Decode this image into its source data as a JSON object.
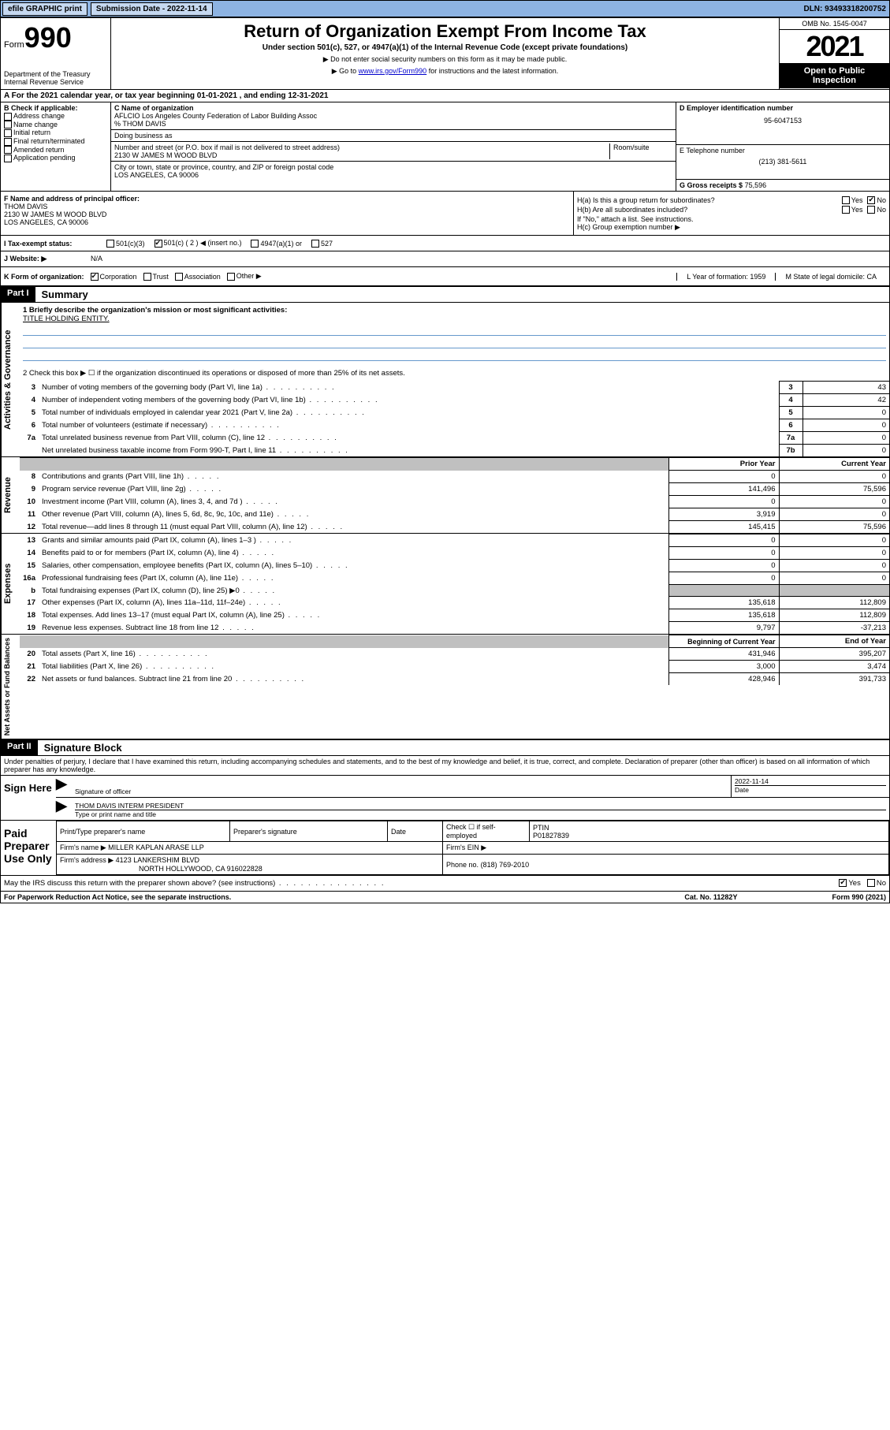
{
  "topbar": {
    "efile": "efile GRAPHIC print",
    "subdate_label": "Submission Date - 2022-11-14",
    "dln_label": "DLN: 93493318200752"
  },
  "header": {
    "form_prefix": "Form",
    "form_no": "990",
    "title": "Return of Organization Exempt From Income Tax",
    "sub1": "Under section 501(c), 527, or 4947(a)(1) of the Internal Revenue Code (except private foundations)",
    "sub2": "▶ Do not enter social security numbers on this form as it may be made public.",
    "sub3_pre": "▶ Go to ",
    "sub3_link": "www.irs.gov/Form990",
    "sub3_post": " for instructions and the latest information.",
    "dept": "Department of the Treasury\nInternal Revenue Service",
    "omb": "OMB No. 1545-0047",
    "year": "2021",
    "inspection": "Open to Public Inspection"
  },
  "rowA": "A For the 2021 calendar year, or tax year beginning 01-01-2021   , and ending 12-31-2021",
  "blockB": {
    "title": "B Check if applicable:",
    "items": [
      "Address change",
      "Name change",
      "Initial return",
      "Final return/terminated",
      "Amended return",
      "Application pending"
    ]
  },
  "blockC": {
    "name_lbl": "C Name of organization",
    "name": "AFLCIO Los Angeles County Federation of Labor Building Assoc",
    "care": "% THOM DAVIS",
    "dba_lbl": "Doing business as",
    "addr_lbl": "Number and street (or P.O. box if mail is not delivered to street address)",
    "room_lbl": "Room/suite",
    "addr": "2130 W JAMES M WOOD BLVD",
    "city_lbl": "City or town, state or province, country, and ZIP or foreign postal code",
    "city": "LOS ANGELES, CA  90006"
  },
  "blockD": {
    "lbl": "D Employer identification number",
    "val": "95-6047153"
  },
  "blockE": {
    "lbl": "E Telephone number",
    "val": "(213) 381-5611"
  },
  "blockG": {
    "lbl": "G Gross receipts $",
    "val": "75,596"
  },
  "blockF": {
    "lbl": "F Name and address of principal officer:",
    "name": "THOM DAVIS",
    "addr1": "2130 W JAMES M WOOD BLVD",
    "addr2": "LOS ANGELES, CA  90006"
  },
  "blockH": {
    "ha": "H(a)  Is this a group return for subordinates?",
    "ha_yes": "Yes",
    "ha_no": "No",
    "hb": "H(b)  Are all subordinates included?",
    "hb_yes": "Yes",
    "hb_no": "No",
    "hb_note": "If \"No,\" attach a list. See instructions.",
    "hc": "H(c)  Group exemption number ▶"
  },
  "rowI": {
    "lbl": "I   Tax-exempt status:",
    "o1": "501(c)(3)",
    "o2": "501(c) ( 2 ) ◀ (insert no.)",
    "o3": "4947(a)(1) or",
    "o4": "527"
  },
  "rowJ": {
    "lbl": "J   Website: ▶",
    "val": "N/A"
  },
  "rowK": {
    "lbl": "K Form of organization:",
    "o1": "Corporation",
    "o2": "Trust",
    "o3": "Association",
    "o4": "Other ▶",
    "L": "L Year of formation: 1959",
    "M": "M State of legal domicile: CA"
  },
  "part1": {
    "hdr": "Part I",
    "title": "Summary",
    "q1": "1   Briefly describe the organization's mission or most significant activities:",
    "mission": "TITLE HOLDING ENTITY.",
    "q2": "2   Check this box ▶ ☐  if the organization discontinued its operations or disposed of more than 25% of its net assets.",
    "lines_gov": [
      {
        "n": "3",
        "d": "Number of voting members of the governing body (Part VI, line 1a)",
        "b": "3",
        "v": "43"
      },
      {
        "n": "4",
        "d": "Number of independent voting members of the governing body (Part VI, line 1b)",
        "b": "4",
        "v": "42"
      },
      {
        "n": "5",
        "d": "Total number of individuals employed in calendar year 2021 (Part V, line 2a)",
        "b": "5",
        "v": "0"
      },
      {
        "n": "6",
        "d": "Total number of volunteers (estimate if necessary)",
        "b": "6",
        "v": "0"
      },
      {
        "n": "7a",
        "d": "Total unrelated business revenue from Part VIII, column (C), line 12",
        "b": "7a",
        "v": "0"
      },
      {
        "n": "",
        "d": "Net unrelated business taxable income from Form 990-T, Part I, line 11",
        "b": "7b",
        "v": "0"
      }
    ],
    "col_prior": "Prior Year",
    "col_curr": "Current Year",
    "rev": [
      {
        "n": "8",
        "d": "Contributions and grants (Part VIII, line 1h)",
        "p": "0",
        "c": "0"
      },
      {
        "n": "9",
        "d": "Program service revenue (Part VIII, line 2g)",
        "p": "141,496",
        "c": "75,596"
      },
      {
        "n": "10",
        "d": "Investment income (Part VIII, column (A), lines 3, 4, and 7d )",
        "p": "0",
        "c": "0"
      },
      {
        "n": "11",
        "d": "Other revenue (Part VIII, column (A), lines 5, 6d, 8c, 9c, 10c, and 11e)",
        "p": "3,919",
        "c": "0"
      },
      {
        "n": "12",
        "d": "Total revenue—add lines 8 through 11 (must equal Part VIII, column (A), line 12)",
        "p": "145,415",
        "c": "75,596"
      }
    ],
    "exp": [
      {
        "n": "13",
        "d": "Grants and similar amounts paid (Part IX, column (A), lines 1–3 )",
        "p": "0",
        "c": "0"
      },
      {
        "n": "14",
        "d": "Benefits paid to or for members (Part IX, column (A), line 4)",
        "p": "0",
        "c": "0"
      },
      {
        "n": "15",
        "d": "Salaries, other compensation, employee benefits (Part IX, column (A), lines 5–10)",
        "p": "0",
        "c": "0"
      },
      {
        "n": "16a",
        "d": "Professional fundraising fees (Part IX, column (A), line 11e)",
        "p": "0",
        "c": "0"
      },
      {
        "n": "b",
        "d": "Total fundraising expenses (Part IX, column (D), line 25) ▶0",
        "p": "",
        "c": "",
        "shaded": true
      },
      {
        "n": "17",
        "d": "Other expenses (Part IX, column (A), lines 11a–11d, 11f–24e)",
        "p": "135,618",
        "c": "112,809"
      },
      {
        "n": "18",
        "d": "Total expenses. Add lines 13–17 (must equal Part IX, column (A), line 25)",
        "p": "135,618",
        "c": "112,809"
      },
      {
        "n": "19",
        "d": "Revenue less expenses. Subtract line 18 from line 12",
        "p": "9,797",
        "c": "-37,213"
      }
    ],
    "col_beg": "Beginning of Current Year",
    "col_end": "End of Year",
    "net": [
      {
        "n": "20",
        "d": "Total assets (Part X, line 16)",
        "p": "431,946",
        "c": "395,207"
      },
      {
        "n": "21",
        "d": "Total liabilities (Part X, line 26)",
        "p": "3,000",
        "c": "3,474"
      },
      {
        "n": "22",
        "d": "Net assets or fund balances. Subtract line 21 from line 20",
        "p": "428,946",
        "c": "391,733"
      }
    ],
    "side_gov": "Activities & Governance",
    "side_rev": "Revenue",
    "side_exp": "Expenses",
    "side_net": "Net Assets or Fund Balances"
  },
  "part2": {
    "hdr": "Part II",
    "title": "Signature Block",
    "decl": "Under penalties of perjury, I declare that I have examined this return, including accompanying schedules and statements, and to the best of my knowledge and belief, it is true, correct, and complete. Declaration of preparer (other than officer) is based on all information of which preparer has any knowledge.",
    "sign_here": "Sign Here",
    "sig_officer": "Signature of officer",
    "sig_date": "2022-11-14",
    "date_lbl": "Date",
    "name_title": "THOM DAVIS INTERM PRESIDENT",
    "type_name": "Type or print name and title",
    "paid": "Paid Preparer Use Only",
    "prep_name_lbl": "Print/Type preparer's name",
    "prep_sig_lbl": "Preparer's signature",
    "prep_date_lbl": "Date",
    "check_if": "Check ☐ if self-employed",
    "ptin_lbl": "PTIN",
    "ptin": "P01827839",
    "firm_name_lbl": "Firm's name    ▶",
    "firm_name": "MILLER KAPLAN ARASE LLP",
    "firm_ein_lbl": "Firm's EIN ▶",
    "firm_addr_lbl": "Firm's address ▶",
    "firm_addr1": "4123 LANKERSHIM BLVD",
    "firm_addr2": "NORTH HOLLYWOOD, CA  916022828",
    "phone_lbl": "Phone no.",
    "phone": "(818) 769-2010",
    "may_irs": "May the IRS discuss this return with the preparer shown above? (see instructions)",
    "yes": "Yes",
    "no": "No"
  },
  "footer": {
    "paperwork": "For Paperwork Reduction Act Notice, see the separate instructions.",
    "cat": "Cat. No. 11282Y",
    "form": "Form 990 (2021)"
  }
}
